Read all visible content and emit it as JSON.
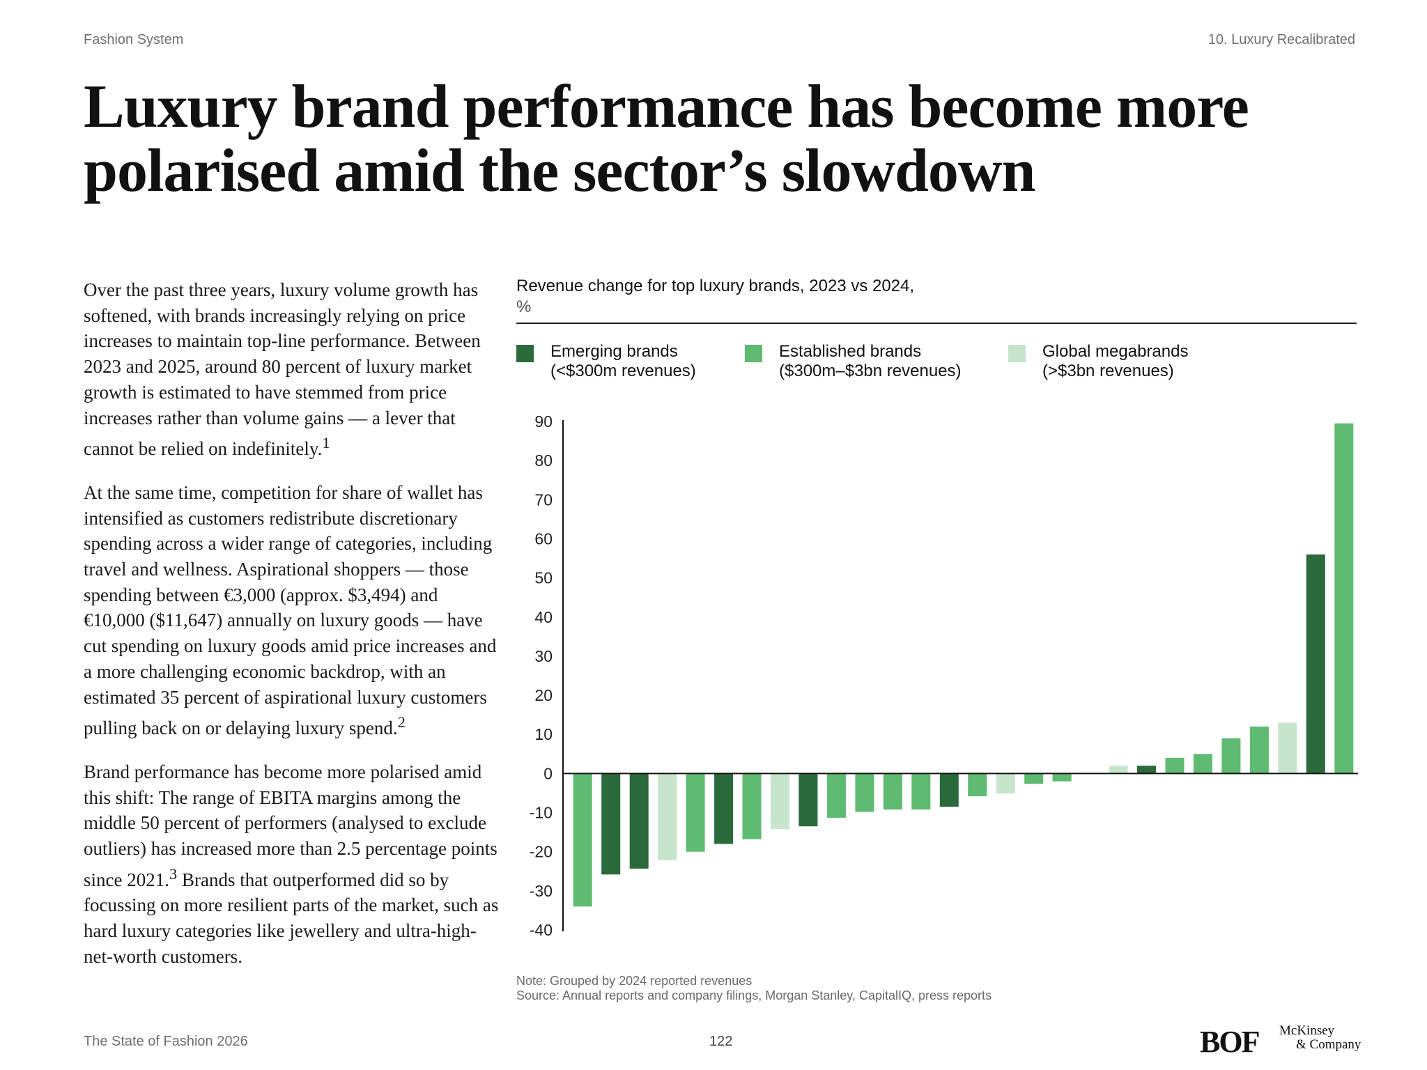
{
  "header": {
    "left": "Fashion System",
    "right": "10. Luxury Recalibrated"
  },
  "title": {
    "line1": "Luxury brand performance has become more",
    "line2": "polarised amid the sector’s slowdown"
  },
  "body": {
    "p1": "Over the past three years, luxury volume growth has softened, with brands increasingly relying on price increases to maintain top-line performance. Between 2023 and 2025, around 80 percent of luxury market growth is estimated to have stemmed from price increases rather than volume gains — a lever that cannot be relied on indefinitely.",
    "p1_sup": "1",
    "p2": "At the same time, competition for share of wallet has intensified as customers redistribute discretionary spending across a wider range of categories, including travel and wellness. Aspirational shoppers — those spending between €3,000 (approx. $3,494) and €10,000 ($11,647) annually on luxury goods — have cut spending on luxury goods amid price increases and a more challenging economic backdrop, with an estimated 35 percent of aspirational luxury customers pulling back on or delaying luxury spend.",
    "p2_sup": "2",
    "p3a": "Brand performance has become more polarised amid this shift: The range of EBITA margins among the middle 50 percent of performers (analysed to exclude outliers) has increased more than 2.5 percentage points since 2021.",
    "p3_sup": "3",
    "p3b": " Brands that outperformed did so by focussing on more resilient parts of the market, such as hard luxury categories like jewellery and ultra-high-net-worth customers."
  },
  "chart_data": {
    "type": "bar",
    "title": "Revenue change for top luxury brands, 2023 vs 2024,",
    "unit": "%",
    "ylim": [
      -40,
      90
    ],
    "yticks": [
      90,
      80,
      70,
      60,
      50,
      40,
      30,
      20,
      10,
      0,
      -10,
      -20,
      -30,
      -40
    ],
    "grid": false,
    "legend_position": "top",
    "legend": [
      {
        "key": "emerging",
        "label_line1": "Emerging brands",
        "label_line2": "(<$300m revenues)",
        "color": "#2a6a3b"
      },
      {
        "key": "established",
        "label_line1": "Established brands",
        "label_line2": "($300m–$3bn revenues)",
        "color": "#5fba72"
      },
      {
        "key": "megabrand",
        "label_line1": "Global megabrands",
        "label_line2": "(>$3bn revenues)",
        "color": "#c7e4cc"
      }
    ],
    "values": [
      -34,
      -25.8,
      -24.3,
      -22.2,
      -20,
      -18,
      -16.8,
      -14.2,
      -13.5,
      -11.3,
      -9.8,
      -9.2,
      -9.2,
      -8.5,
      -5.8,
      -5.1,
      -2.6,
      -2,
      0,
      2,
      2,
      4,
      5,
      9,
      12,
      13,
      56,
      89.5
    ],
    "groups": [
      "established",
      "emerging",
      "emerging",
      "megabrand",
      "established",
      "emerging",
      "established",
      "megabrand",
      "emerging",
      "established",
      "established",
      "established",
      "established",
      "emerging",
      "established",
      "megabrand",
      "established",
      "established",
      "none",
      "megabrand",
      "emerging",
      "established",
      "established",
      "established",
      "established",
      "megabrand",
      "emerging",
      "established"
    ]
  },
  "notes": {
    "note": "Note: Grouped by 2024 reported revenues",
    "source": "Source: Annual reports and company filings, Morgan Stanley, CapitalIQ, press reports"
  },
  "footer": {
    "left": "The State of Fashion 2026",
    "page": "122"
  },
  "logos": {
    "bof": "BOF",
    "mckinsey_line1": "McKinsey",
    "mckinsey_line2": "& Company"
  }
}
